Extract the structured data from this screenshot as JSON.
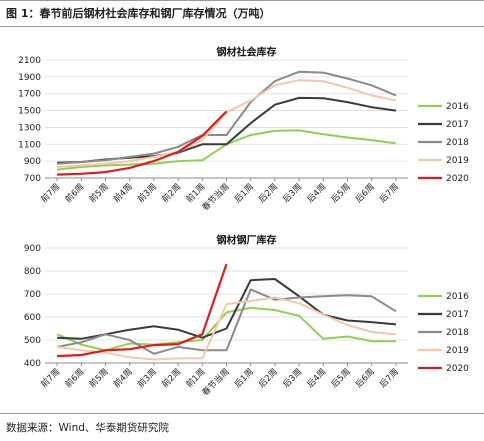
{
  "figure_title": "图 1：春节前后钢材社会库存和钢厂库存情况（万吨）",
  "source": "数据来源：Wind、华泰期货研究院",
  "colors": {
    "2016": "#8fd14f",
    "2017": "#3a3a3a",
    "2018": "#8a8a8a",
    "2019": "#f7c6a8",
    "2020": "#e31a1c"
  },
  "chart_data": [
    {
      "type": "line",
      "title": "钢材社会库存",
      "xlabel": "",
      "ylabel": "",
      "categories": [
        "前7周",
        "前6周",
        "前5周",
        "前4周",
        "前3周",
        "前2周",
        "前1周",
        "春节当周",
        "后1周",
        "后2周",
        "后3周",
        "后4周",
        "后5周",
        "后6周",
        "后7周"
      ],
      "ylim": [
        700,
        2100
      ],
      "yticks": [
        700,
        900,
        1100,
        1300,
        1500,
        1700,
        1900,
        2100
      ],
      "grid": true,
      "legend": "right",
      "series": [
        {
          "name": "2016",
          "values": [
            800,
            830,
            850,
            860,
            870,
            900,
            910,
            1100,
            1210,
            1260,
            1265,
            1220,
            1180,
            1150,
            1110
          ]
        },
        {
          "name": "2017",
          "values": [
            880,
            890,
            920,
            940,
            960,
            1000,
            1100,
            1100,
            1350,
            1570,
            1650,
            1645,
            1600,
            1540,
            1500
          ]
        },
        {
          "name": "2018",
          "values": [
            870,
            890,
            910,
            950,
            990,
            1070,
            1210,
            1210,
            1600,
            1850,
            1960,
            1950,
            1880,
            1800,
            1680
          ]
        },
        {
          "name": "2019",
          "values": [
            830,
            850,
            870,
            900,
            950,
            1010,
            1150,
            1480,
            1620,
            1800,
            1860,
            1850,
            1770,
            1680,
            1620
          ]
        },
        {
          "name": "2020",
          "values": [
            740,
            750,
            770,
            820,
            900,
            1010,
            1200,
            1490,
            null,
            null,
            null,
            null,
            null,
            null,
            null
          ]
        }
      ]
    },
    {
      "type": "line",
      "title": "钢材钢厂库存",
      "xlabel": "",
      "ylabel": "",
      "categories": [
        "前7周",
        "前6周",
        "前5周",
        "前4周",
        "前3周",
        "前2周",
        "前1周",
        "春节当周",
        "后1周",
        "后2周",
        "后3周",
        "后4周",
        "后5周",
        "后6周",
        "后7周"
      ],
      "ylim": [
        400,
        900
      ],
      "yticks": [
        400,
        500,
        600,
        700,
        800,
        900
      ],
      "grid": true,
      "legend": "right",
      "series": [
        {
          "name": "2016",
          "values": [
            525,
            480,
            455,
            485,
            480,
            490,
            500,
            620,
            640,
            630,
            605,
            505,
            515,
            495,
            495
          ]
        },
        {
          "name": "2017",
          "values": [
            510,
            505,
            525,
            545,
            560,
            545,
            510,
            550,
            760,
            765,
            690,
            610,
            585,
            578,
            568
          ]
        },
        {
          "name": "2018",
          "values": [
            470,
            490,
            525,
            500,
            440,
            470,
            455,
            455,
            720,
            675,
            685,
            690,
            695,
            690,
            625
          ]
        },
        {
          "name": "2019",
          "values": [
            470,
            455,
            445,
            425,
            415,
            420,
            420,
            655,
            670,
            685,
            660,
            610,
            565,
            535,
            525
          ]
        },
        {
          "name": "2020",
          "values": [
            430,
            435,
            455,
            460,
            478,
            482,
            525,
            830,
            null,
            null,
            null,
            null,
            null,
            null,
            null
          ]
        }
      ]
    }
  ]
}
